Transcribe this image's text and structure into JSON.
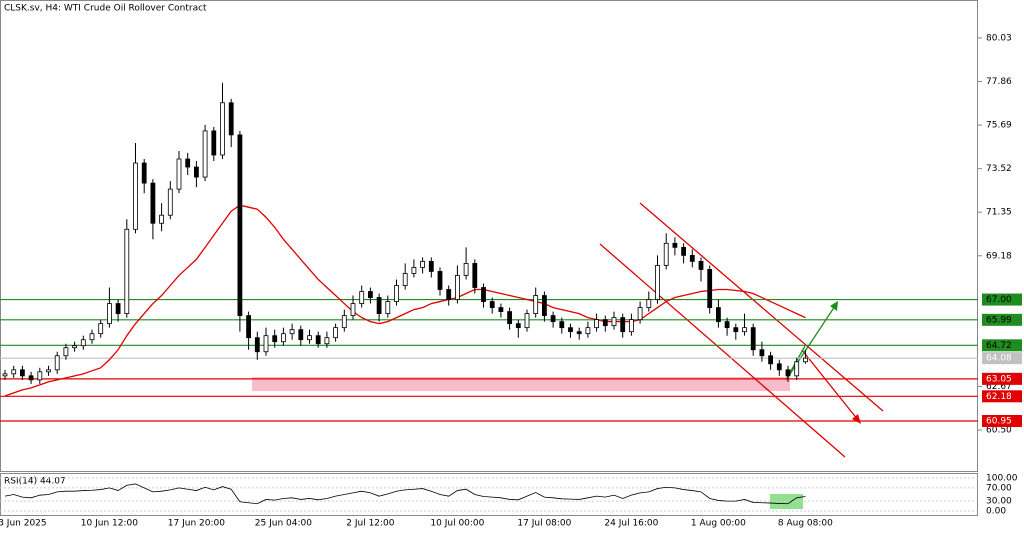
{
  "chart_data": {
    "type": "candlestick",
    "title": "CLSK.sv, H4:  WTI Crude Oil Rollover Contract",
    "categories": [
      null,
      null,
      "3 Jun 2025",
      null,
      null,
      null,
      null,
      null,
      null,
      null,
      null,
      null,
      "10 Jun 12:00",
      null,
      null,
      null,
      null,
      null,
      null,
      null,
      null,
      null,
      "17 Jun 20:00",
      null,
      null,
      null,
      null,
      null,
      null,
      null,
      null,
      null,
      "25 Jun 04:00",
      null,
      null,
      null,
      null,
      null,
      null,
      null,
      null,
      null,
      "2 Jul 12:00",
      null,
      null,
      null,
      null,
      null,
      null,
      null,
      null,
      null,
      "10 Jul 00:00",
      null,
      null,
      null,
      null,
      null,
      null,
      null,
      null,
      null,
      "17 Jul 08:00",
      null,
      null,
      null,
      null,
      null,
      null,
      null,
      null,
      null,
      "24 Jul 16:00",
      null,
      null,
      null,
      null,
      null,
      null,
      null,
      null,
      null,
      "1 Aug 00:00",
      null,
      null,
      null,
      null,
      null,
      null,
      null,
      null,
      null,
      "8 Aug 08:00"
    ],
    "ohlc": [
      [
        63.2,
        63.5,
        63.0,
        63.3
      ],
      [
        63.3,
        63.7,
        63.1,
        63.5
      ],
      [
        63.5,
        63.7,
        63.0,
        63.2
      ],
      [
        63.2,
        63.4,
        62.8,
        63.0
      ],
      [
        63.0,
        63.6,
        62.8,
        63.4
      ],
      [
        63.4,
        63.7,
        63.2,
        63.5
      ],
      [
        63.5,
        64.4,
        63.3,
        64.2
      ],
      [
        64.2,
        64.8,
        64.0,
        64.6
      ],
      [
        64.6,
        64.9,
        64.4,
        64.7
      ],
      [
        64.7,
        65.2,
        64.5,
        65.0
      ],
      [
        65.0,
        65.5,
        64.8,
        65.3
      ],
      [
        65.3,
        66.0,
        65.1,
        65.8
      ],
      [
        65.8,
        67.6,
        65.6,
        66.8
      ],
      [
        66.8,
        67.0,
        65.9,
        66.3
      ],
      [
        66.3,
        71.0,
        66.1,
        70.5
      ],
      [
        70.5,
        74.8,
        70.3,
        73.8
      ],
      [
        73.8,
        74.0,
        72.3,
        72.8
      ],
      [
        72.8,
        73.0,
        70.0,
        70.8
      ],
      [
        70.8,
        71.8,
        70.4,
        71.2
      ],
      [
        71.2,
        72.9,
        71.0,
        72.5
      ],
      [
        72.5,
        74.4,
        72.3,
        74.0
      ],
      [
        74.0,
        74.3,
        73.2,
        73.6
      ],
      [
        73.6,
        73.9,
        72.6,
        73.1
      ],
      [
        73.1,
        75.7,
        72.9,
        75.4
      ],
      [
        75.4,
        75.6,
        73.9,
        74.2
      ],
      [
        74.2,
        77.8,
        74.0,
        76.8
      ],
      [
        76.8,
        77.0,
        74.6,
        75.2
      ],
      [
        75.2,
        75.4,
        65.4,
        66.2
      ],
      [
        66.2,
        66.4,
        64.5,
        65.1
      ],
      [
        65.1,
        65.4,
        64.0,
        64.4
      ],
      [
        64.4,
        65.6,
        64.2,
        65.2
      ],
      [
        65.2,
        65.5,
        64.6,
        64.9
      ],
      [
        64.9,
        65.6,
        64.7,
        65.3
      ],
      [
        65.3,
        65.8,
        65.0,
        65.5
      ],
      [
        65.5,
        65.7,
        64.7,
        65.0
      ],
      [
        65.0,
        65.5,
        64.8,
        65.2
      ],
      [
        65.2,
        65.4,
        64.6,
        64.8
      ],
      [
        64.8,
        65.4,
        64.6,
        65.1
      ],
      [
        65.1,
        65.8,
        64.9,
        65.6
      ],
      [
        65.6,
        66.5,
        65.4,
        66.2
      ],
      [
        66.2,
        67.2,
        66.0,
        66.8
      ],
      [
        66.8,
        67.7,
        66.6,
        67.4
      ],
      [
        67.4,
        67.6,
        66.8,
        67.1
      ],
      [
        67.1,
        67.3,
        65.9,
        66.3
      ],
      [
        66.3,
        67.2,
        66.1,
        66.9
      ],
      [
        66.9,
        68.0,
        66.7,
        67.7
      ],
      [
        67.7,
        68.8,
        67.5,
        68.3
      ],
      [
        68.3,
        69.0,
        68.1,
        68.6
      ],
      [
        68.6,
        69.1,
        68.3,
        68.9
      ],
      [
        68.9,
        69.1,
        68.1,
        68.4
      ],
      [
        68.4,
        68.6,
        67.2,
        67.5
      ],
      [
        67.5,
        67.7,
        66.7,
        67.0
      ],
      [
        67.0,
        68.7,
        66.8,
        68.2
      ],
      [
        68.2,
        69.6,
        68.0,
        68.8
      ],
      [
        68.8,
        69.0,
        67.3,
        67.6
      ],
      [
        67.6,
        67.8,
        66.6,
        66.9
      ],
      [
        66.9,
        67.1,
        66.3,
        66.6
      ],
      [
        66.6,
        66.8,
        66.1,
        66.4
      ],
      [
        66.4,
        66.6,
        65.5,
        65.8
      ],
      [
        65.8,
        66.0,
        65.1,
        65.6
      ],
      [
        65.6,
        66.5,
        65.4,
        66.3
      ],
      [
        66.3,
        67.6,
        66.1,
        67.2
      ],
      [
        67.2,
        67.4,
        65.9,
        66.2
      ],
      [
        66.2,
        66.4,
        65.6,
        65.9
      ],
      [
        65.9,
        66.1,
        65.3,
        65.6
      ],
      [
        65.6,
        65.8,
        65.1,
        65.4
      ],
      [
        65.4,
        65.6,
        65.0,
        65.3
      ],
      [
        65.3,
        65.9,
        65.1,
        65.6
      ],
      [
        65.6,
        66.3,
        65.4,
        66.0
      ],
      [
        66.0,
        66.2,
        65.4,
        65.7
      ],
      [
        65.7,
        66.4,
        65.5,
        66.1
      ],
      [
        66.1,
        66.3,
        65.1,
        65.4
      ],
      [
        65.4,
        66.3,
        65.2,
        66.0
      ],
      [
        66.0,
        66.9,
        65.8,
        66.6
      ],
      [
        66.6,
        67.4,
        66.4,
        67.0
      ],
      [
        67.0,
        69.2,
        66.8,
        68.7
      ],
      [
        68.7,
        70.3,
        68.5,
        69.8
      ],
      [
        69.8,
        70.1,
        69.2,
        69.6
      ],
      [
        69.6,
        69.8,
        68.8,
        69.2
      ],
      [
        69.2,
        69.5,
        68.6,
        68.9
      ],
      [
        68.9,
        69.1,
        67.9,
        68.5
      ],
      [
        68.5,
        68.7,
        66.3,
        66.6
      ],
      [
        66.6,
        67.0,
        65.6,
        65.9
      ],
      [
        65.9,
        66.1,
        65.2,
        65.6
      ],
      [
        65.6,
        65.8,
        65.0,
        65.4
      ],
      [
        65.4,
        66.3,
        65.2,
        65.6
      ],
      [
        65.6,
        65.8,
        64.2,
        64.5
      ],
      [
        64.5,
        64.9,
        63.9,
        64.2
      ],
      [
        64.2,
        64.4,
        63.5,
        63.8
      ],
      [
        63.8,
        64.0,
        63.2,
        63.5
      ],
      [
        63.5,
        63.7,
        62.9,
        63.2
      ],
      [
        63.2,
        64.1,
        63.0,
        63.9
      ],
      [
        63.9,
        64.5,
        63.8,
        64.08
      ]
    ],
    "color": "#000000",
    "ma": {
      "color": "#e00000",
      "values": [
        62.2,
        62.35,
        62.5,
        62.6,
        62.75,
        62.9,
        63.0,
        63.1,
        63.2,
        63.3,
        63.45,
        63.6,
        64.0,
        64.5,
        65.2,
        65.8,
        66.3,
        66.8,
        67.2,
        67.7,
        68.2,
        68.6,
        69.0,
        69.6,
        70.2,
        70.8,
        71.4,
        71.7,
        71.6,
        71.5,
        71.1,
        70.6,
        70.0,
        69.5,
        69.0,
        68.5,
        68.0,
        67.6,
        67.2,
        66.8,
        66.4,
        66.1,
        65.9,
        65.8,
        65.9,
        66.1,
        66.3,
        66.5,
        66.6,
        66.8,
        66.9,
        67.0,
        67.1,
        67.3,
        67.5,
        67.5,
        67.4,
        67.3,
        67.2,
        67.1,
        67.0,
        66.9,
        66.8,
        66.6,
        66.5,
        66.4,
        66.3,
        66.1,
        66.0,
        65.9,
        65.9,
        65.9,
        65.9,
        66.0,
        66.3,
        66.6,
        66.9,
        67.1,
        67.2,
        67.3,
        67.4,
        67.45,
        67.5,
        67.5,
        67.45,
        67.4,
        67.3,
        67.1,
        66.9,
        66.7,
        66.5,
        66.3,
        66.1
      ]
    },
    "ylim": [
      58.51,
      81.92
    ],
    "yticks": [
      80.03,
      77.86,
      75.69,
      73.52,
      71.35,
      69.18,
      62.67,
      {
        "value": 60.5,
        "label": "60.50"
      }
    ],
    "levels": [
      {
        "value": 67,
        "label": "67.00",
        "color": "#1e8c1e"
      },
      {
        "value": 65.99,
        "color": "#1e8c1e"
      },
      {
        "value": 64.72,
        "color": "#1e8c1e"
      },
      {
        "value": 64.08,
        "color": "#c0c0c0"
      },
      {
        "value": 63.05,
        "color": "#e00000"
      },
      {
        "value": 62.18,
        "color": "#e00000"
      },
      {
        "value": 60.95,
        "color": "#e00000"
      }
    ],
    "rsi": {
      "title": "RSI(14) 44.07",
      "color": "#000000",
      "ylim": [
        -12.1,
        109.1
      ],
      "yticks": [
        {
          "value": 100,
          "label": "100.00"
        },
        {
          "value": 70,
          "label": "70.00"
        },
        {
          "value": 30,
          "label": "30.00"
        },
        {
          "value": 0,
          "label": "0.00"
        }
      ],
      "values": [
        45,
        50,
        42,
        40,
        48,
        50,
        58,
        60,
        60,
        62,
        63,
        65,
        70,
        62,
        78,
        82,
        70,
        58,
        60,
        64,
        70,
        66,
        62,
        72,
        64,
        74,
        66,
        28,
        25,
        22,
        35,
        33,
        38,
        40,
        35,
        38,
        34,
        38,
        45,
        50,
        55,
        60,
        55,
        45,
        52,
        60,
        64,
        66,
        68,
        60,
        50,
        45,
        62,
        66,
        50,
        44,
        42,
        40,
        35,
        34,
        45,
        56,
        42,
        40,
        37,
        36,
        35,
        40,
        45,
        42,
        48,
        38,
        48,
        55,
        58,
        68,
        72,
        70,
        65,
        62,
        58,
        38,
        32,
        30,
        30,
        35,
        26,
        25,
        24,
        23,
        22,
        40,
        44.07
      ]
    }
  }
}
